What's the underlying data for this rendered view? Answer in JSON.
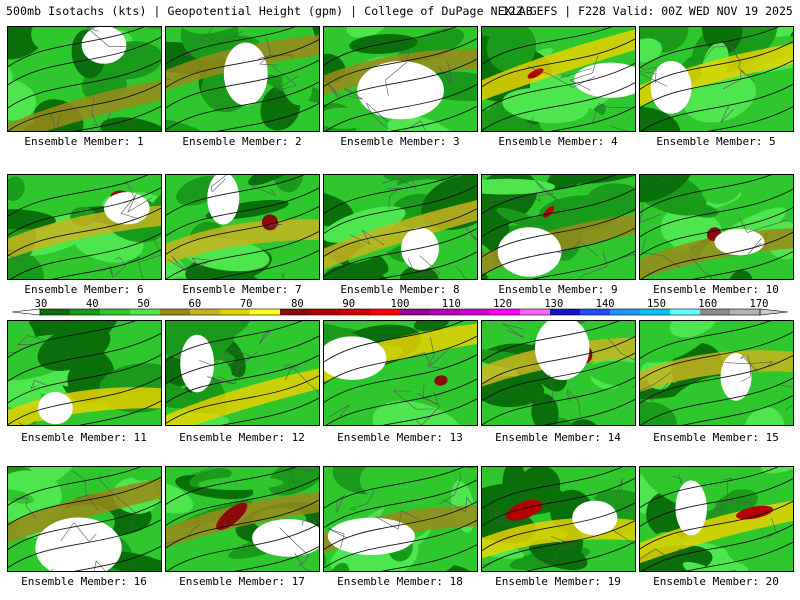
{
  "header": {
    "left": "500mb Isotachs (kts) | Geopotential Height (gpm) | College of DuPage NEXLAB",
    "right": "12Z GEFS | F228 Valid: 00Z WED NOV 19 2025"
  },
  "caption_prefix": "Ensemble Member: ",
  "members": [
    {
      "label": "Ensemble Member: 1"
    },
    {
      "label": "Ensemble Member: 2"
    },
    {
      "label": "Ensemble Member: 3"
    },
    {
      "label": "Ensemble Member: 4"
    },
    {
      "label": "Ensemble Member: 5"
    },
    {
      "label": "Ensemble Member: 6"
    },
    {
      "label": "Ensemble Member: 7"
    },
    {
      "label": "Ensemble Member: 8"
    },
    {
      "label": "Ensemble Member: 9"
    },
    {
      "label": "Ensemble Member: 10"
    },
    {
      "label": "Ensemble Member: 11"
    },
    {
      "label": "Ensemble Member: 12"
    },
    {
      "label": "Ensemble Member: 13"
    },
    {
      "label": "Ensemble Member: 14"
    },
    {
      "label": "Ensemble Member: 15"
    },
    {
      "label": "Ensemble Member: 16"
    },
    {
      "label": "Ensemble Member: 17"
    },
    {
      "label": "Ensemble Member: 18"
    },
    {
      "label": "Ensemble Member: 19"
    },
    {
      "label": "Ensemble Member: 20"
    }
  ],
  "colorbar": {
    "ticks": [
      "30",
      "40",
      "50",
      "60",
      "70",
      "80",
      "90",
      "100",
      "110",
      "120",
      "130",
      "140",
      "150",
      "160",
      "170"
    ],
    "colors": [
      "#0a6e0a",
      "#1a9a1a",
      "#2ec82e",
      "#4ee64e",
      "#9a8a1a",
      "#c8b41e",
      "#e6d200",
      "#ffff1e",
      "#8b0a0a",
      "#b40000",
      "#d20000",
      "#ff0000",
      "#960096",
      "#b400b4",
      "#d200d2",
      "#ff00ff",
      "#ff64ff",
      "#1414c8",
      "#1e50ff",
      "#1e96ff",
      "#00c8ff",
      "#64ffff",
      "#8c8c8c",
      "#b4b4b4"
    ]
  }
}
